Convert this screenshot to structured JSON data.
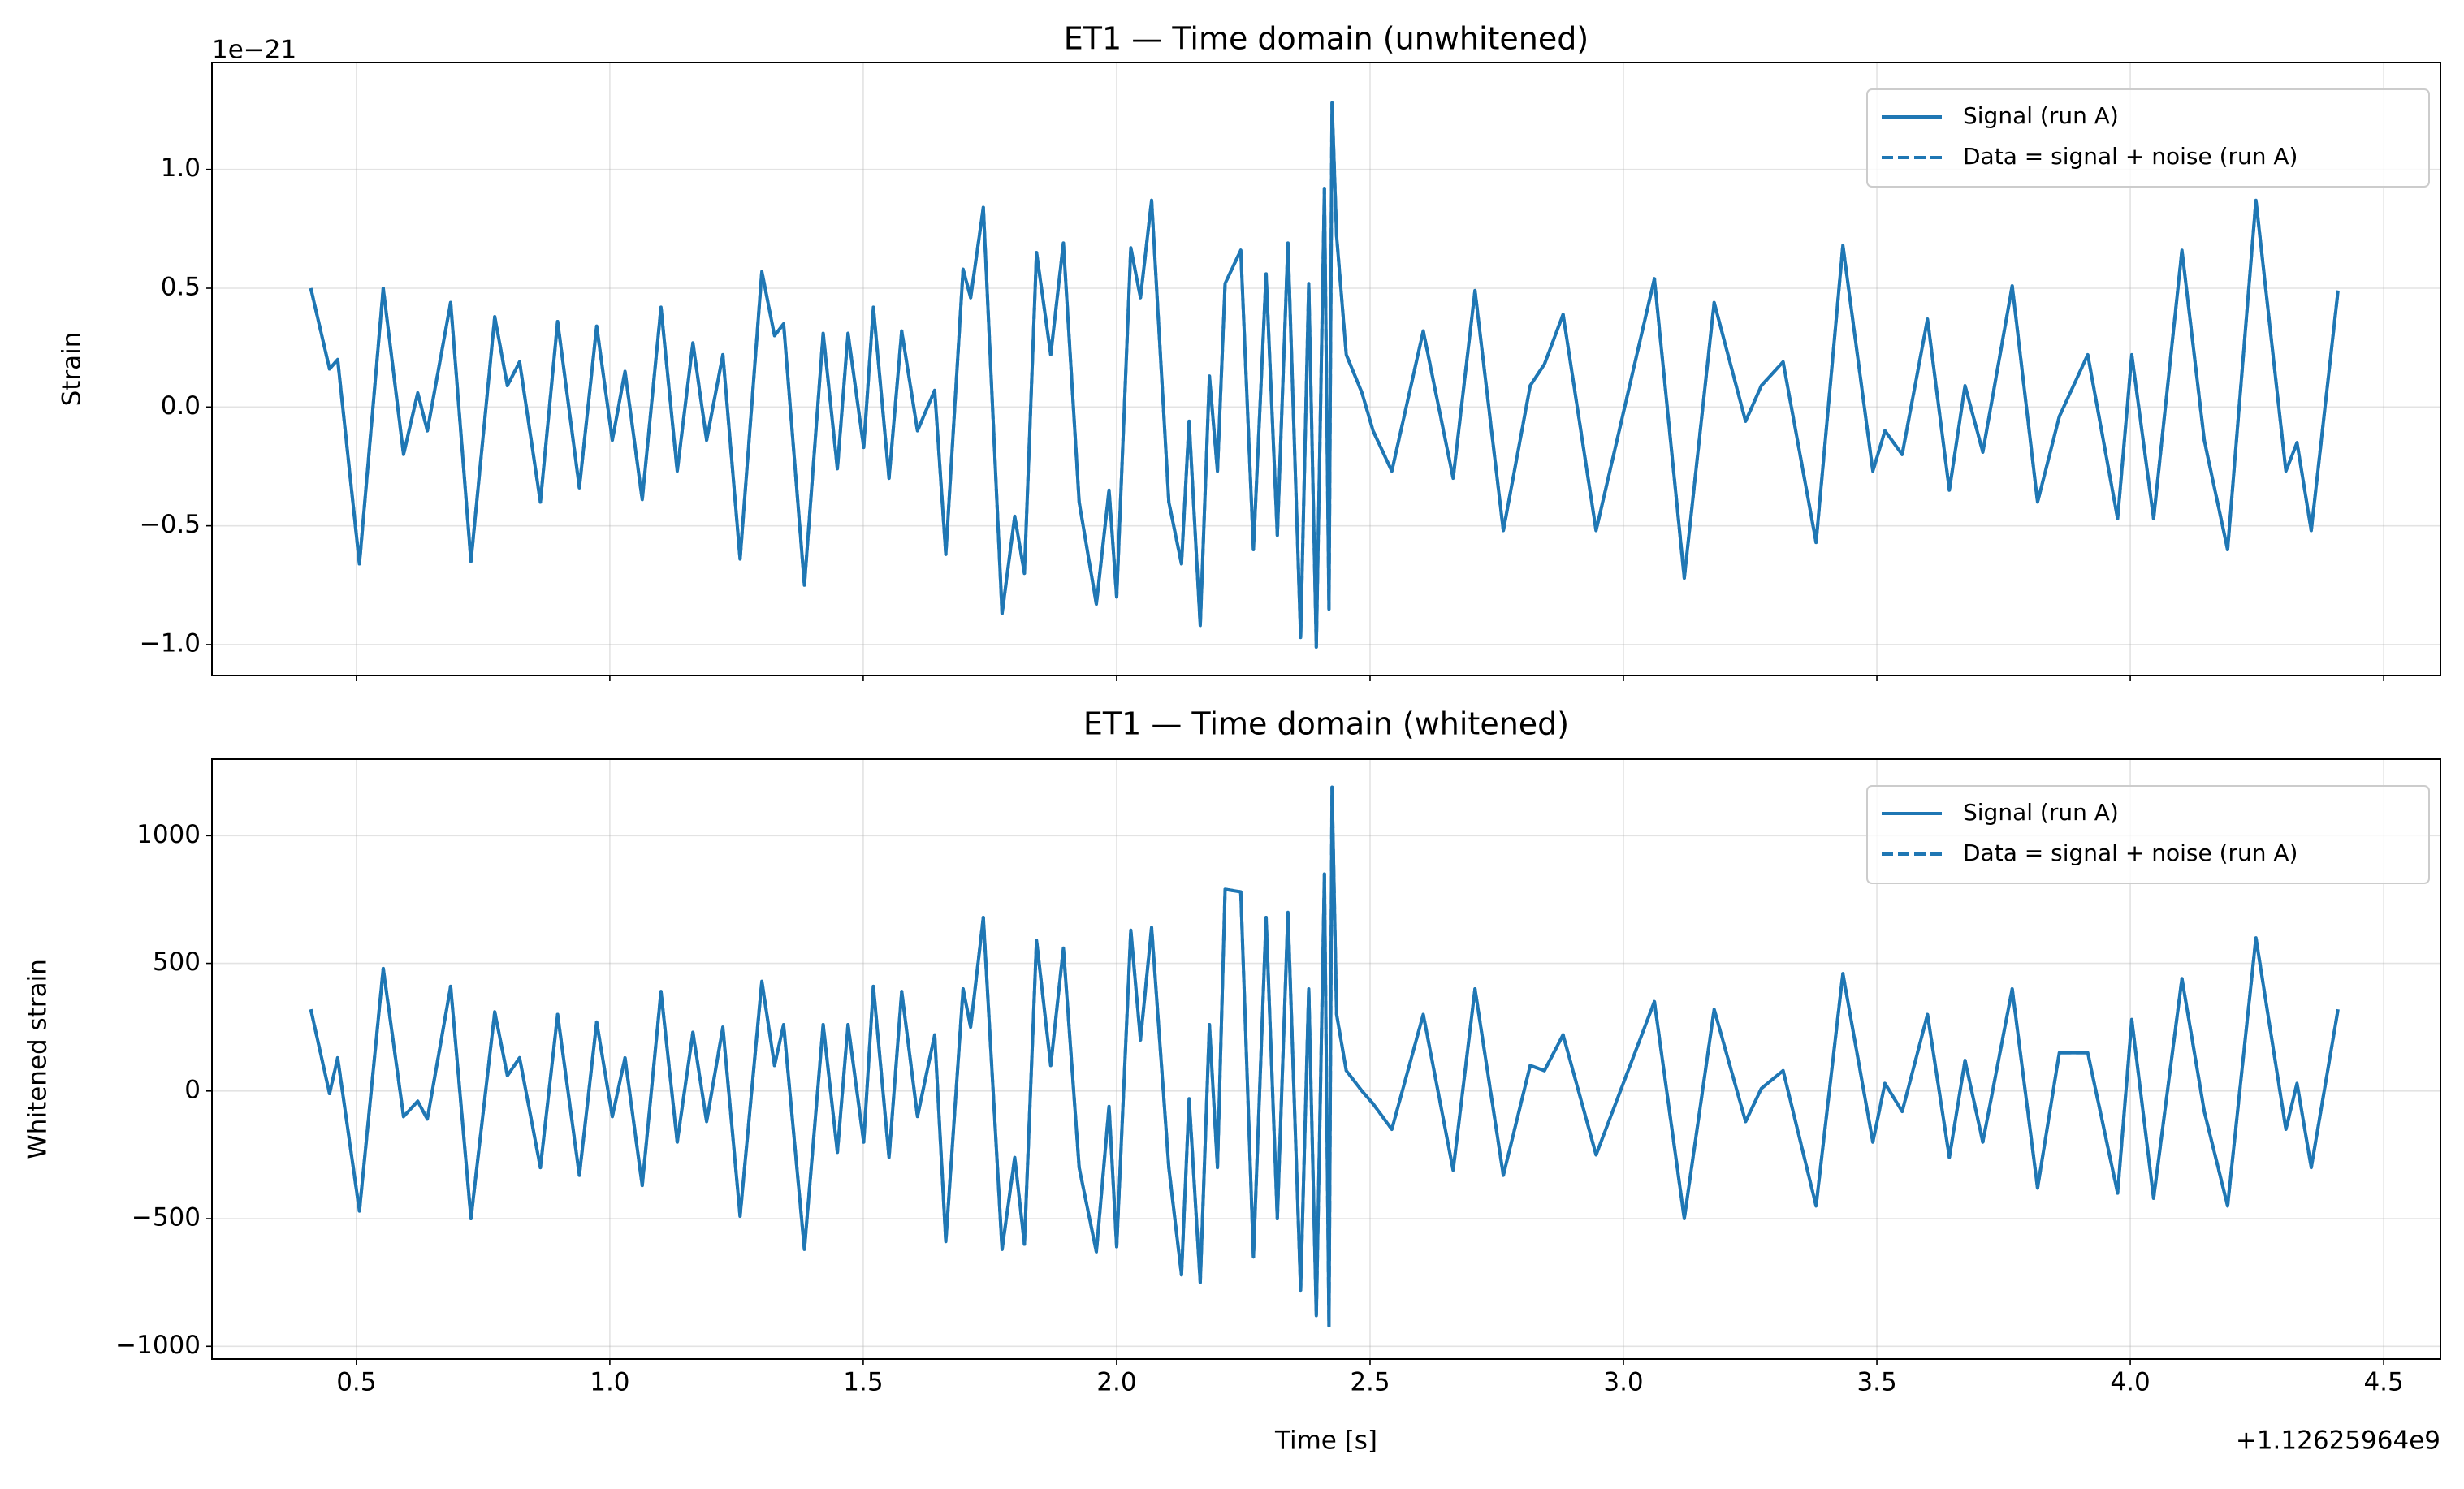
{
  "chart_data": [
    {
      "type": "line",
      "title": "ET1 — Time domain (unwhitened)",
      "ylabel": "Strain",
      "y_offset_text": "1e−21",
      "xlim": [
        0.215,
        4.612
      ],
      "ylim": [
        -1.13,
        1.45
      ],
      "yticks": [
        {
          "value": -1.0,
          "label": "−1.0"
        },
        {
          "value": -0.5,
          "label": "−0.5"
        },
        {
          "value": 0.0,
          "label": "0.0"
        },
        0.5,
        {
          "value": 1.0,
          "label": "1.0"
        }
      ],
      "grid": true,
      "legend": "upper right",
      "x": [
        0.41,
        0.447,
        0.463,
        0.506,
        0.553,
        0.593,
        0.621,
        0.64,
        0.686,
        0.726,
        0.773,
        0.798,
        0.822,
        0.863,
        0.897,
        0.94,
        0.974,
        1.005,
        1.03,
        1.064,
        1.101,
        1.133,
        1.164,
        1.191,
        1.223,
        1.257,
        1.3,
        1.325,
        1.343,
        1.384,
        1.421,
        1.449,
        1.47,
        1.501,
        1.52,
        1.551,
        1.576,
        1.607,
        1.641,
        1.663,
        1.697,
        1.712,
        1.737,
        1.774,
        1.799,
        1.818,
        1.842,
        1.87,
        1.895,
        1.926,
        1.96,
        1.985,
        2.0,
        2.028,
        2.047,
        2.069,
        2.103,
        2.128,
        2.143,
        2.165,
        2.183,
        2.199,
        2.214,
        2.245,
        2.27,
        2.295,
        2.317,
        2.338,
        2.363,
        2.379,
        2.394,
        2.41,
        2.419,
        2.425,
        2.434,
        2.453,
        2.484,
        2.506,
        2.543,
        2.605,
        2.664,
        2.707,
        2.763,
        2.816,
        2.844,
        2.881,
        2.946,
        3.061,
        3.12,
        3.179,
        3.241,
        3.272,
        3.315,
        3.38,
        3.433,
        3.492,
        3.516,
        3.55,
        3.6,
        3.643,
        3.674,
        3.709,
        3.767,
        3.817,
        3.86,
        3.916,
        3.975,
        4.003,
        4.046,
        4.102,
        4.146,
        4.192,
        4.248,
        4.307,
        4.329,
        4.357,
        4.41
      ],
      "series": [
        {
          "name": "Signal (run A)",
          "color": "#1f77b4",
          "linestyle": "solid",
          "values": [
            0.5,
            0.16,
            0.2,
            -0.66,
            0.5,
            -0.2,
            0.06,
            -0.1,
            0.44,
            -0.65,
            0.38,
            0.09,
            0.19,
            -0.4,
            0.36,
            -0.34,
            0.34,
            -0.14,
            0.15,
            -0.39,
            0.42,
            -0.27,
            0.27,
            -0.14,
            0.22,
            -0.64,
            0.57,
            0.3,
            0.35,
            -0.75,
            0.31,
            -0.26,
            0.31,
            -0.17,
            0.42,
            -0.3,
            0.32,
            -0.1,
            0.07,
            -0.62,
            0.58,
            0.46,
            0.84,
            -0.87,
            -0.46,
            -0.7,
            0.65,
            0.22,
            0.69,
            -0.4,
            -0.83,
            -0.35,
            -0.8,
            0.67,
            0.46,
            0.87,
            -0.4,
            -0.66,
            -0.06,
            -0.92,
            0.13,
            -0.27,
            0.52,
            0.66,
            -0.6,
            0.56,
            -0.54,
            0.69,
            -0.97,
            0.52,
            -1.01,
            0.92,
            -0.85,
            1.28,
            0.72,
            0.22,
            0.06,
            -0.1,
            -0.27,
            0.32,
            -0.3,
            0.49,
            -0.52,
            0.09,
            0.18,
            0.39,
            -0.52,
            0.54,
            -0.72,
            0.44,
            -0.06,
            0.09,
            0.19,
            -0.57,
            0.68,
            -0.27,
            -0.1,
            -0.2,
            0.37,
            -0.35,
            0.09,
            -0.19,
            0.51,
            -0.4,
            -0.04,
            0.22,
            -0.47,
            0.22,
            -0.47,
            0.66,
            -0.14,
            -0.6,
            0.87,
            -0.27,
            -0.15,
            -0.52,
            0.49
          ]
        },
        {
          "name": "Data = signal + noise (run A)",
          "color": "#1f77b4",
          "linestyle": "dashed",
          "values": [
            0.5,
            0.16,
            0.2,
            -0.66,
            0.5,
            -0.2,
            0.06,
            -0.1,
            0.44,
            -0.65,
            0.38,
            0.09,
            0.19,
            -0.4,
            0.36,
            -0.34,
            0.34,
            -0.14,
            0.15,
            -0.39,
            0.42,
            -0.27,
            0.27,
            -0.14,
            0.22,
            -0.64,
            0.57,
            0.3,
            0.35,
            -0.75,
            0.31,
            -0.26,
            0.31,
            -0.17,
            0.42,
            -0.3,
            0.32,
            -0.1,
            0.07,
            -0.62,
            0.58,
            0.46,
            0.84,
            -0.87,
            -0.46,
            -0.7,
            0.65,
            0.22,
            0.69,
            -0.4,
            -0.83,
            -0.35,
            -0.8,
            0.67,
            0.46,
            0.87,
            -0.4,
            -0.66,
            -0.06,
            -0.92,
            0.13,
            -0.27,
            0.52,
            0.66,
            -0.6,
            0.56,
            -0.54,
            0.69,
            -0.97,
            0.52,
            -1.01,
            0.92,
            -0.85,
            1.28,
            0.72,
            0.22,
            0.06,
            -0.1,
            -0.27,
            0.32,
            -0.3,
            0.49,
            -0.52,
            0.09,
            0.18,
            0.39,
            -0.52,
            0.54,
            -0.72,
            0.44,
            -0.06,
            0.09,
            0.19,
            -0.57,
            0.68,
            -0.27,
            -0.1,
            -0.2,
            0.37,
            -0.35,
            0.09,
            -0.19,
            0.51,
            -0.4,
            -0.04,
            0.22,
            -0.47,
            0.22,
            -0.47,
            0.66,
            -0.14,
            -0.6,
            0.87,
            -0.27,
            -0.15,
            -0.52,
            0.49
          ]
        }
      ]
    },
    {
      "type": "line",
      "title": "ET1 — Time domain (whitened)",
      "ylabel": "Whitened strain",
      "xlabel": "Time [s]",
      "x_offset_text": "+1.12625964e9",
      "xlim": [
        0.215,
        4.612
      ],
      "ylim": [
        -1050,
        1300
      ],
      "xticks": [
        0.5,
        {
          "value": 1.0,
          "label": "1.0"
        },
        1.5,
        {
          "value": 2.0,
          "label": "2.0"
        },
        2.5,
        {
          "value": 3.0,
          "label": "3.0"
        },
        3.5,
        {
          "value": 4.0,
          "label": "4.0"
        },
        4.5
      ],
      "yticks": [
        {
          "value": -1000,
          "label": "−1000"
        },
        {
          "value": -500,
          "label": "−500"
        },
        0,
        500,
        1000
      ],
      "grid": true,
      "legend": "upper right",
      "x": [
        0.41,
        0.447,
        0.463,
        0.506,
        0.553,
        0.593,
        0.621,
        0.64,
        0.686,
        0.726,
        0.773,
        0.798,
        0.822,
        0.863,
        0.897,
        0.94,
        0.974,
        1.005,
        1.03,
        1.064,
        1.101,
        1.133,
        1.164,
        1.191,
        1.223,
        1.257,
        1.3,
        1.325,
        1.343,
        1.384,
        1.421,
        1.449,
        1.47,
        1.501,
        1.52,
        1.551,
        1.576,
        1.607,
        1.641,
        1.663,
        1.697,
        1.712,
        1.737,
        1.774,
        1.799,
        1.818,
        1.842,
        1.87,
        1.895,
        1.926,
        1.96,
        1.985,
        2.0,
        2.028,
        2.047,
        2.069,
        2.103,
        2.128,
        2.143,
        2.165,
        2.183,
        2.199,
        2.214,
        2.245,
        2.27,
        2.295,
        2.317,
        2.338,
        2.363,
        2.379,
        2.394,
        2.41,
        2.419,
        2.425,
        2.434,
        2.453,
        2.484,
        2.506,
        2.543,
        2.605,
        2.664,
        2.707,
        2.763,
        2.816,
        2.844,
        2.881,
        2.946,
        3.061,
        3.12,
        3.179,
        3.241,
        3.272,
        3.315,
        3.38,
        3.433,
        3.492,
        3.516,
        3.55,
        3.6,
        3.643,
        3.674,
        3.709,
        3.767,
        3.817,
        3.86,
        3.916,
        3.975,
        4.003,
        4.046,
        4.102,
        4.146,
        4.192,
        4.248,
        4.307,
        4.329,
        4.357,
        4.41
      ],
      "series": [
        {
          "name": "Signal (run A)",
          "color": "#1f77b4",
          "linestyle": "solid",
          "values": [
            320,
            -10,
            130,
            -470,
            480,
            -100,
            -40,
            -110,
            410,
            -500,
            310,
            60,
            130,
            -300,
            300,
            -330,
            270,
            -100,
            130,
            -370,
            390,
            -200,
            230,
            -120,
            250,
            -490,
            430,
            100,
            260,
            -620,
            260,
            -240,
            260,
            -200,
            410,
            -260,
            390,
            -100,
            220,
            -590,
            400,
            250,
            680,
            -620,
            -260,
            -600,
            590,
            100,
            560,
            -300,
            -630,
            -60,
            -610,
            630,
            200,
            640,
            -300,
            -720,
            -30,
            -750,
            260,
            -300,
            790,
            780,
            -650,
            680,
            -500,
            700,
            -780,
            400,
            -880,
            850,
            -920,
            1190,
            300,
            80,
            0,
            -50,
            -150,
            300,
            -310,
            400,
            -330,
            100,
            80,
            220,
            -250,
            350,
            -500,
            320,
            -120,
            10,
            80,
            -450,
            460,
            -200,
            30,
            -80,
            300,
            -260,
            120,
            -200,
            400,
            -380,
            150,
            150,
            -400,
            280,
            -420,
            440,
            -80,
            -450,
            600,
            -150,
            30,
            -300,
            320
          ]
        },
        {
          "name": "Data = signal + noise (run A)",
          "color": "#1f77b4",
          "linestyle": "dashed",
          "values": [
            320,
            -10,
            130,
            -470,
            480,
            -100,
            -40,
            -110,
            410,
            -500,
            310,
            60,
            130,
            -300,
            300,
            -330,
            270,
            -100,
            130,
            -370,
            390,
            -200,
            230,
            -120,
            250,
            -490,
            430,
            100,
            260,
            -620,
            260,
            -240,
            260,
            -200,
            410,
            -260,
            390,
            -100,
            220,
            -590,
            400,
            250,
            680,
            -620,
            -260,
            -600,
            590,
            100,
            560,
            -300,
            -630,
            -60,
            -610,
            630,
            200,
            640,
            -300,
            -720,
            -30,
            -750,
            260,
            -300,
            790,
            780,
            -650,
            680,
            -500,
            700,
            -780,
            400,
            -880,
            850,
            -920,
            1190,
            300,
            80,
            0,
            -50,
            -150,
            300,
            -310,
            400,
            -330,
            100,
            80,
            220,
            -250,
            350,
            -500,
            320,
            -120,
            10,
            80,
            -450,
            460,
            -200,
            30,
            -80,
            300,
            -260,
            120,
            -200,
            400,
            -380,
            150,
            150,
            -400,
            280,
            -420,
            440,
            -80,
            -450,
            600,
            -150,
            30,
            -300,
            320
          ]
        }
      ]
    }
  ]
}
